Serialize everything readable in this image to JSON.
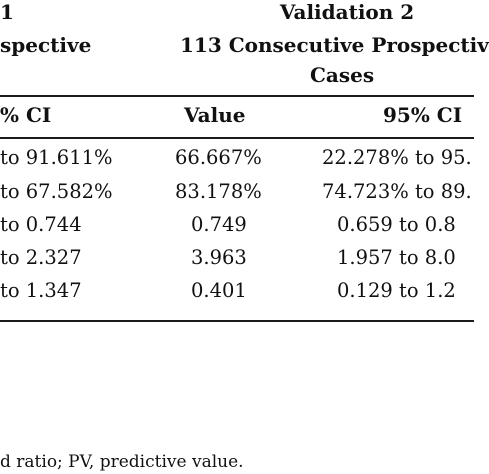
{
  "table": {
    "header": {
      "group1": {
        "line1": "1",
        "line2": "spective"
      },
      "group2": {
        "line1": "Validation 2",
        "line2": "113 Consecutive Prospectiv",
        "line3": "Cases"
      }
    },
    "columns": [
      "% CI",
      "Value",
      "95% CI"
    ],
    "rows": [
      {
        "ci1": "to 91.611%",
        "value": "66.667%",
        "ci2": "22.278% to 95."
      },
      {
        "ci1": "to 67.582%",
        "value": "83.178%",
        "ci2": "74.723% to 89."
      },
      {
        "ci1": "to 0.744",
        "value": "0.749",
        "ci2": "0.659 to 0.8"
      },
      {
        "ci1": "to 2.327",
        "value": "3.963",
        "ci2": "1.957 to 8.0"
      },
      {
        "ci1": "to 1.347",
        "value": "0.401",
        "ci2": "0.129 to 1.2"
      }
    ]
  },
  "footnote": "d ratio; PV, predictive value."
}
